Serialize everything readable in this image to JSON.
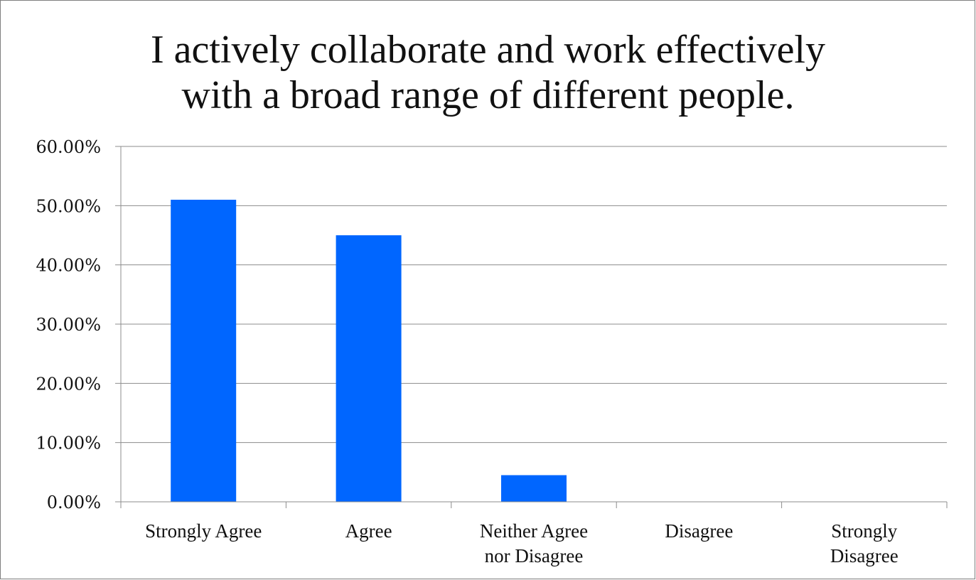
{
  "chart_data": {
    "type": "bar",
    "title_lines": [
      "I actively collaborate and work effectively",
      "with a broad range of different people."
    ],
    "categories": [
      [
        "Strongly Agree"
      ],
      [
        "Agree"
      ],
      [
        "Neither Agree",
        "nor Disagree"
      ],
      [
        "Disagree"
      ],
      [
        "Strongly",
        "Disagree"
      ]
    ],
    "values": [
      51.0,
      45.0,
      4.5,
      0,
      0
    ],
    "value_unit": "percent",
    "ylim": [
      0,
      60
    ],
    "ytick_values": [
      0,
      10,
      20,
      30,
      40,
      50,
      60
    ],
    "ytick_labels": [
      "0.00%",
      "10.00%",
      "20.00%",
      "30.00%",
      "40.00%",
      "50.00%",
      "60.00%"
    ],
    "xlabel": "",
    "ylabel": "",
    "grid": true,
    "legend": "none",
    "bar_color": "#0066ff",
    "grid_color": "#8c8c8c",
    "axis_color": "#8c8c8c"
  }
}
